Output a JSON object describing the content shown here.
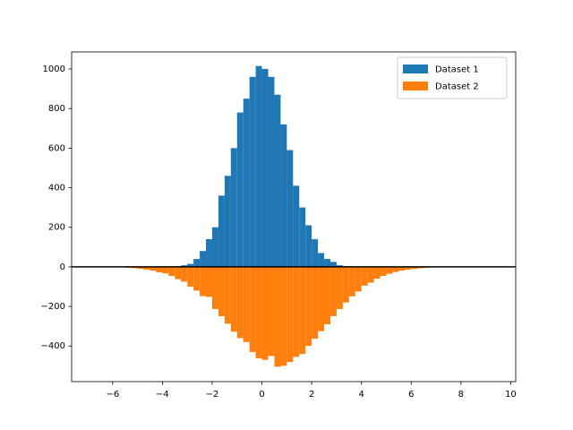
{
  "chart_data": {
    "type": "histogram",
    "xlim": [
      -7.65,
      10.2
    ],
    "ylim": [
      -580,
      1086
    ],
    "xticks": [
      {
        "value": -6,
        "label": "−6"
      },
      {
        "value": -4,
        "label": "−4"
      },
      {
        "value": -2,
        "label": "−2"
      },
      0,
      2,
      4,
      6,
      8,
      10
    ],
    "yticks": [
      {
        "value": -400,
        "label": "−400"
      },
      {
        "value": -200,
        "label": "−200"
      },
      0,
      200,
      400,
      600,
      800,
      1000
    ],
    "axhline": 0,
    "legend": "upper right",
    "series": [
      {
        "name": "Dataset 1",
        "color": "#1f77b4",
        "bins": [
          -3.5,
          -3.25,
          -3,
          -2.75,
          -2.5,
          -2.25,
          -2,
          -1.75,
          -1.5,
          -1.25,
          -1,
          -0.75,
          -0.5,
          -0.25,
          0,
          0.25,
          0.5,
          0.75,
          1,
          1.25,
          1.5,
          1.75,
          2,
          2.25,
          2.5,
          2.75,
          3,
          3.25,
          3.5
        ],
        "values": [
          3,
          8,
          15,
          40,
          80,
          140,
          200,
          360,
          460,
          600,
          780,
          850,
          960,
          1015,
          1000,
          960,
          870,
          720,
          590,
          410,
          300,
          210,
          140,
          70,
          40,
          25,
          8,
          3
        ]
      },
      {
        "name": "Dataset 2",
        "color": "#ff7f0e",
        "bins": [
          -5.5,
          -5.25,
          -5,
          -4.75,
          -4.5,
          -4.25,
          -4,
          -3.75,
          -3.5,
          -3.25,
          -3,
          -2.75,
          -2.5,
          -2.25,
          -2,
          -1.75,
          -1.5,
          -1.25,
          -1,
          -0.75,
          -0.5,
          -0.25,
          0,
          0.25,
          0.5,
          0.75,
          1,
          1.25,
          1.5,
          1.75,
          2,
          2.25,
          2.5,
          2.75,
          3,
          3.25,
          3.5,
          3.75,
          4,
          4.25,
          4.5,
          4.75,
          5,
          5.25,
          5.5,
          5.75,
          6,
          6.25,
          6.5,
          6.75,
          7,
          7.25
        ],
        "values": [
          -5,
          -7,
          -10,
          -14,
          -19,
          -28,
          -33,
          -46,
          -62,
          -75,
          -100,
          -120,
          -148,
          -152,
          -213,
          -249,
          -287,
          -328,
          -360,
          -380,
          -430,
          -462,
          -470,
          -450,
          -505,
          -500,
          -481,
          -455,
          -440,
          -399,
          -363,
          -325,
          -290,
          -249,
          -213,
          -180,
          -149,
          -125,
          -95,
          -80,
          -60,
          -46,
          -35,
          -26,
          -19,
          -14,
          -10,
          -7,
          -5,
          -3,
          -2
        ]
      }
    ]
  }
}
